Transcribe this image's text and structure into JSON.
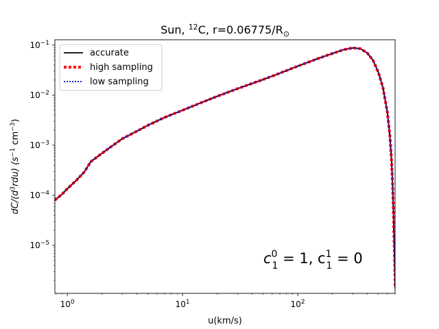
{
  "chart_data": {
    "type": "line",
    "title": {
      "base": "Sun, ",
      "sup": "12",
      "rest": "C, r=0.06775/R",
      "sub": "⊙"
    },
    "xlabel": "u(km/s)",
    "ylabel": {
      "part1": "dC/(d",
      "sup1": "3",
      "part2": "rdu) (s",
      "sup2": "−1",
      "part3": " cm",
      "sup3": "−3",
      "part4": ")"
    },
    "xscale": "log",
    "yscale": "log",
    "xlim": [
      0.78,
      700
    ],
    "ylim": [
      1.1e-06,
      0.128
    ],
    "x_ticks": [
      {
        "value": 1,
        "base": "10",
        "exp": "0"
      },
      {
        "value": 10,
        "base": "10",
        "exp": "1"
      },
      {
        "value": 100,
        "base": "10",
        "exp": "2"
      }
    ],
    "y_ticks": [
      {
        "value": 1e-05,
        "base": "10",
        "exp": "−5"
      },
      {
        "value": 0.0001,
        "base": "10",
        "exp": "−4"
      },
      {
        "value": 0.001,
        "base": "10",
        "exp": "−3"
      },
      {
        "value": 0.01,
        "base": "10",
        "exp": "−2"
      },
      {
        "value": 0.1,
        "base": "10",
        "exp": "−1"
      }
    ],
    "annotation": {
      "text": "c₁⁰ = 1, c₁¹ = 0",
      "parts": [
        "c",
        "0",
        "1",
        " = 1, c",
        "1",
        "1",
        " = 0"
      ],
      "location": "lower-right"
    },
    "legend": {
      "location": "upper-left",
      "entries": [
        {
          "label": "accurate",
          "color": "#000000",
          "style": "solid"
        },
        {
          "label": "high sampling",
          "color": "#ff0000",
          "style": "dotted-thick"
        },
        {
          "label": "low sampling",
          "color": "#0000cc",
          "style": "dotted"
        }
      ]
    },
    "x": [
      0.78,
      0.9,
      1.0,
      1.2,
      1.4,
      1.6,
      2.0,
      2.5,
      3.0,
      4.0,
      5.0,
      7.0,
      10,
      15,
      20,
      30,
      50,
      70,
      100,
      150,
      200,
      250,
      300,
      350,
      400,
      450,
      500,
      550,
      600,
      630,
      650,
      665,
      675,
      685,
      692,
      698,
      700
    ],
    "series": [
      {
        "name": "accurate",
        "values": [
          8e-05,
          0.000105,
          0.000135,
          0.0002,
          0.00029,
          0.00047,
          0.00069,
          0.001,
          0.00135,
          0.0019,
          0.0025,
          0.0036,
          0.005,
          0.0073,
          0.0095,
          0.0135,
          0.0205,
          0.0275,
          0.038,
          0.054,
          0.068,
          0.081,
          0.088,
          0.085,
          0.07,
          0.05,
          0.029,
          0.014,
          0.0045,
          0.0016,
          0.00055,
          0.00018,
          6e-05,
          1.5e-05,
          6e-06,
          2.5e-06,
          1.4e-06
        ]
      },
      {
        "name": "high sampling",
        "values": [
          8e-05,
          0.000105,
          0.000135,
          0.0002,
          0.00029,
          0.00047,
          0.00069,
          0.001,
          0.00135,
          0.0019,
          0.0025,
          0.0036,
          0.005,
          0.0073,
          0.0095,
          0.0135,
          0.0205,
          0.0275,
          0.038,
          0.054,
          0.068,
          0.081,
          0.088,
          0.085,
          0.07,
          0.05,
          0.029,
          0.014,
          0.0045,
          0.0016,
          0.00055,
          0.00018,
          6e-05,
          1.5e-05,
          6e-06,
          2.5e-06,
          1.4e-06
        ]
      },
      {
        "name": "low sampling",
        "values": [
          8e-05,
          0.000105,
          0.000135,
          0.0002,
          0.00029,
          0.00047,
          0.00069,
          0.001,
          0.00135,
          0.0019,
          0.0025,
          0.0036,
          0.005,
          0.0073,
          0.0095,
          0.0135,
          0.0205,
          0.0275,
          0.038,
          0.054,
          0.068,
          0.081,
          0.088,
          0.085,
          0.07,
          0.05,
          0.029,
          0.014,
          0.0045,
          0.0016,
          0.00055,
          0.00018,
          6e-05,
          1.5e-05,
          6e-06,
          2.5e-06,
          1.4e-06
        ]
      }
    ]
  }
}
